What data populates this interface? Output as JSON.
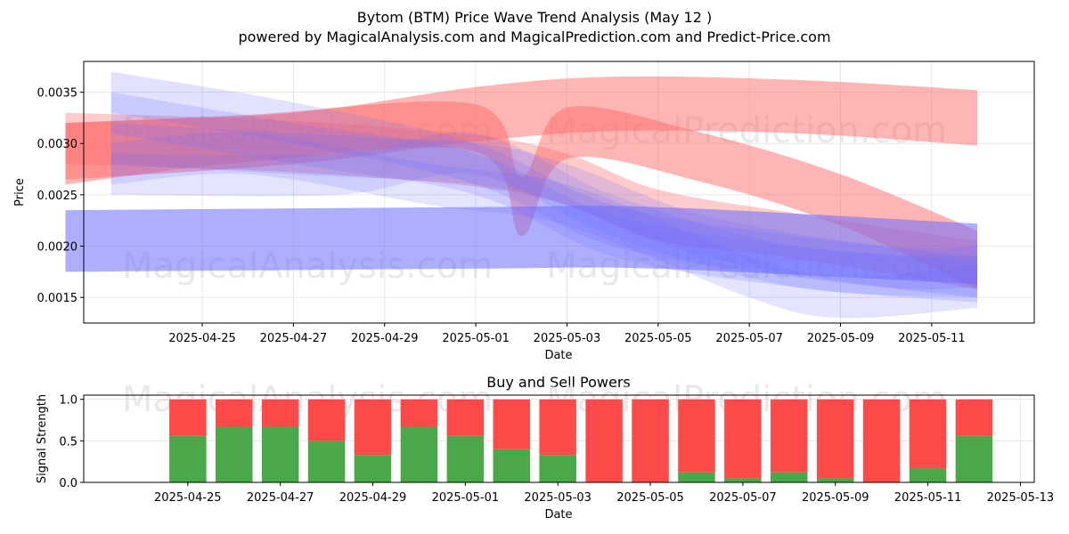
{
  "title_line1": "Bytom (BTM) Price Wave Trend Analysis (May 12 )",
  "title_line2": "powered by MagicalAnalysis.com and MagicalPrediction.com and Predict-Price.com",
  "watermarks": [
    "MagicalAnalysis.com",
    "MagicalPrediction.com"
  ],
  "colors": {
    "buy": "#4aa84a",
    "sell": "#ff4a4a",
    "blue_band": "#6c6cff",
    "red_band": "#ff6b6b",
    "grid": "#e6e6e6"
  },
  "chart_data": [
    {
      "type": "area",
      "title": "",
      "xlabel": "Date",
      "ylabel": "Price",
      "xlim": [
        "2025-04-22",
        "2025-05-13"
      ],
      "ylim": [
        0.00125,
        0.0038
      ],
      "x_ticks": [
        "2025-04-25",
        "2025-04-27",
        "2025-04-29",
        "2025-05-01",
        "2025-05-03",
        "2025-05-05",
        "2025-05-07",
        "2025-05-09",
        "2025-05-11"
      ],
      "y_ticks": [
        0.0015,
        0.002,
        0.0025,
        0.003,
        0.0035
      ],
      "y_tick_labels": [
        "0.0015",
        "0.0020",
        "0.0025",
        "0.0030",
        "0.0035"
      ],
      "grid": true,
      "series": [
        {
          "name": "red-wave-long",
          "color": "red",
          "opacity": 0.5,
          "points": [
            [
              "2025-04-22",
              0.00265,
              0.0032
            ],
            [
              "2025-04-27",
              0.0028,
              0.0033
            ],
            [
              "2025-05-01",
              0.00302,
              0.00355
            ],
            [
              "2025-05-04",
              0.00312,
              0.00365
            ],
            [
              "2025-05-08",
              0.0031,
              0.00362
            ],
            [
              "2025-05-12",
              0.00298,
              0.00352
            ]
          ]
        },
        {
          "name": "red-wave-dip",
          "color": "red",
          "opacity": 0.5,
          "points": [
            [
              "2025-04-22",
              0.0026,
              0.0032
            ],
            [
              "2025-04-26",
              0.00282,
              0.00328
            ],
            [
              "2025-05-01",
              0.00292,
              0.00338
            ],
            [
              "2025-05-02",
              0.0021,
              0.00268
            ],
            [
              "2025-05-03",
              0.00285,
              0.00335
            ],
            [
              "2025-05-06",
              0.00262,
              0.0031
            ],
            [
              "2025-05-09",
              0.0022,
              0.0027
            ],
            [
              "2025-05-12",
              0.00158,
              0.00215
            ]
          ]
        },
        {
          "name": "red-wave-mid",
          "color": "red",
          "opacity": 0.35,
          "points": [
            [
              "2025-04-22",
              0.0028,
              0.0033
            ],
            [
              "2025-04-27",
              0.00272,
              0.00322
            ],
            [
              "2025-05-01",
              0.00258,
              0.00308
            ],
            [
              "2025-05-03",
              0.0024,
              0.0029
            ],
            [
              "2025-05-05",
              0.00205,
              0.00255
            ],
            [
              "2025-05-08",
              0.00188,
              0.00232
            ],
            [
              "2025-05-12",
              0.00158,
              0.00205
            ]
          ]
        },
        {
          "name": "blue-wave-flat",
          "color": "blue",
          "opacity": 0.55,
          "points": [
            [
              "2025-04-22",
              0.00175,
              0.00235
            ],
            [
              "2025-05-01",
              0.00178,
              0.00238
            ],
            [
              "2025-05-05",
              0.00178,
              0.00238
            ],
            [
              "2025-05-12",
              0.00163,
              0.00222
            ]
          ]
        },
        {
          "name": "blue-wave-1",
          "color": "blue",
          "opacity": 0.2,
          "points": [
            [
              "2025-04-23",
              0.0033,
              0.0037
            ],
            [
              "2025-04-27",
              0.003,
              0.0034
            ],
            [
              "2025-05-01",
              0.0026,
              0.003
            ],
            [
              "2025-05-04",
              0.002,
              0.0024
            ],
            [
              "2025-05-08",
              0.0017,
              0.0021
            ],
            [
              "2025-05-12",
              0.0015,
              0.0019
            ]
          ]
        },
        {
          "name": "blue-wave-2",
          "color": "blue",
          "opacity": 0.2,
          "points": [
            [
              "2025-04-23",
              0.0031,
              0.0035
            ],
            [
              "2025-04-27",
              0.0028,
              0.0032
            ],
            [
              "2025-05-01",
              0.0025,
              0.0029
            ],
            [
              "2025-05-04",
              0.0019,
              0.0023
            ],
            [
              "2025-05-08",
              0.0016,
              0.002
            ],
            [
              "2025-05-12",
              0.00145,
              0.00185
            ]
          ]
        },
        {
          "name": "blue-wave-3",
          "color": "blue",
          "opacity": 0.18,
          "points": [
            [
              "2025-04-23",
              0.0026,
              0.003
            ],
            [
              "2025-04-26",
              0.0027,
              0.0031
            ],
            [
              "2025-04-30",
              0.0024,
              0.0028
            ],
            [
              "2025-05-03",
              0.0022,
              0.0026
            ],
            [
              "2025-05-07",
              0.0015,
              0.0019
            ],
            [
              "2025-05-09",
              0.0013,
              0.0017
            ],
            [
              "2025-05-12",
              0.0014,
              0.0018
            ]
          ]
        },
        {
          "name": "blue-wave-4",
          "color": "blue",
          "opacity": 0.18,
          "points": [
            [
              "2025-04-23",
              0.0025,
              0.0029
            ],
            [
              "2025-04-28",
              0.0025,
              0.0029
            ],
            [
              "2025-05-01",
              0.0027,
              0.0031
            ],
            [
              "2025-05-04",
              0.0021,
              0.0025
            ],
            [
              "2025-05-08",
              0.0016,
              0.002
            ],
            [
              "2025-05-12",
              0.0015,
              0.0019
            ]
          ]
        },
        {
          "name": "blue-wave-5",
          "color": "blue",
          "opacity": 0.2,
          "points": [
            [
              "2025-04-23",
              0.0028,
              0.0032
            ],
            [
              "2025-04-27",
              0.0027,
              0.0031
            ],
            [
              "2025-05-01",
              0.0026,
              0.003
            ],
            [
              "2025-05-03",
              0.0024,
              0.0028
            ],
            [
              "2025-05-06",
              0.0019,
              0.0023
            ],
            [
              "2025-05-10",
              0.0016,
              0.002
            ],
            [
              "2025-05-12",
              0.0016,
              0.002
            ]
          ]
        }
      ]
    },
    {
      "type": "bar",
      "stacked": true,
      "title": "Buy and Sell Powers",
      "xlabel": "Date",
      "ylabel": "Signal Strength",
      "xlim": [
        "2025-04-23",
        "2025-05-13"
      ],
      "ylim": [
        0,
        1.05
      ],
      "y_ticks": [
        0.0,
        0.5,
        1.0
      ],
      "y_tick_labels": [
        "0.0",
        "0.5",
        "1.0"
      ],
      "x_ticks": [
        "2025-04-25",
        "2025-04-27",
        "2025-04-29",
        "2025-05-01",
        "2025-05-03",
        "2025-05-05",
        "2025-05-07",
        "2025-05-09",
        "2025-05-11",
        "2025-05-13"
      ],
      "categories": [
        "2025-04-25",
        "2025-04-26",
        "2025-04-27",
        "2025-04-28",
        "2025-04-29",
        "2025-04-30",
        "2025-05-01",
        "2025-05-02",
        "2025-05-03",
        "2025-05-04",
        "2025-05-05",
        "2025-05-06",
        "2025-05-07",
        "2025-05-08",
        "2025-05-09",
        "2025-05-10",
        "2025-05-11",
        "2025-05-12"
      ],
      "series": [
        {
          "name": "Buy",
          "color": "buy",
          "values": [
            0.56,
            0.67,
            0.67,
            0.5,
            0.33,
            0.67,
            0.56,
            0.4,
            0.33,
            0.0,
            0.0,
            0.12,
            0.05,
            0.12,
            0.05,
            0.0,
            0.17,
            0.56
          ]
        },
        {
          "name": "Sell",
          "color": "sell",
          "values": [
            0.44,
            0.33,
            0.33,
            0.5,
            0.67,
            0.33,
            0.44,
            0.6,
            0.67,
            1.0,
            1.0,
            0.88,
            0.95,
            0.88,
            0.95,
            1.0,
            0.83,
            0.44
          ]
        }
      ]
    }
  ]
}
